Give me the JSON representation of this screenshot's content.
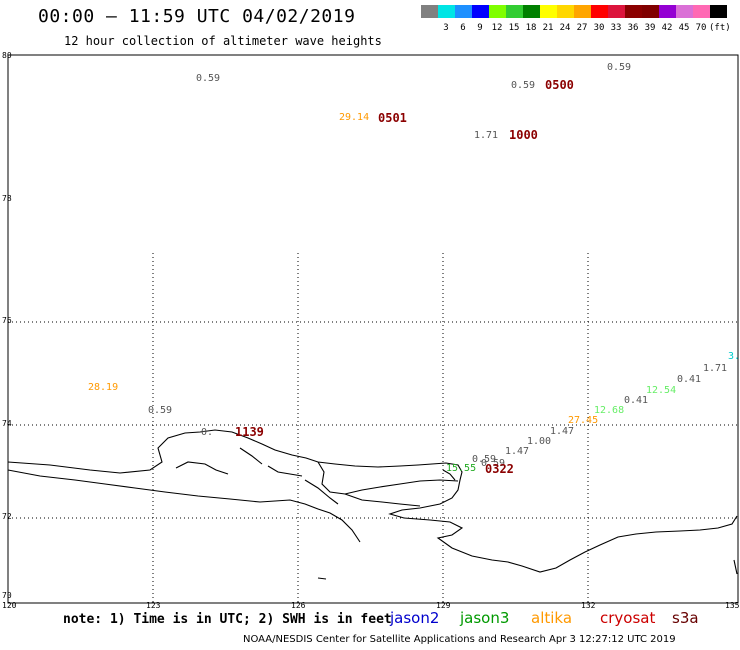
{
  "header": {
    "title": "00:00 – 11:59 UTC 04/02/2019",
    "subtitle": "12 hour collection of altimeter wave heights"
  },
  "legend": {
    "unit": "(ft)",
    "swatches": [
      {
        "label": "",
        "color": "#808080"
      },
      {
        "label": "3",
        "color": "#00e5e5"
      },
      {
        "label": "6",
        "color": "#1e90ff"
      },
      {
        "label": "9",
        "color": "#0000ff"
      },
      {
        "label": "12",
        "color": "#7fff00"
      },
      {
        "label": "15",
        "color": "#32cd32"
      },
      {
        "label": "18",
        "color": "#008000"
      },
      {
        "label": "21",
        "color": "#ffff00"
      },
      {
        "label": "24",
        "color": "#ffd700"
      },
      {
        "label": "27",
        "color": "#ffa500"
      },
      {
        "label": "30",
        "color": "#ff0000"
      },
      {
        "label": "33",
        "color": "#dc143c"
      },
      {
        "label": "36",
        "color": "#8b0000"
      },
      {
        "label": "39",
        "color": "#800000"
      },
      {
        "label": "42",
        "color": "#9400d3"
      },
      {
        "label": "45",
        "color": "#da70d6"
      },
      {
        "label": "70",
        "color": "#ff69b4"
      },
      {
        "label": "",
        "color": "#000000"
      }
    ]
  },
  "axes": {
    "lat_labels": [
      "80",
      "78",
      "76",
      "74",
      "72",
      "70"
    ],
    "lon_labels": [
      "120",
      "123",
      "126",
      "129",
      "132",
      "135"
    ]
  },
  "swh_labels": [
    {
      "text": "0.59",
      "color": "#555555"
    },
    {
      "text": "0.59",
      "color": "#555555"
    },
    {
      "text": "0.59",
      "color": "#555555"
    },
    {
      "text": "29.14",
      "color": "#ff9900"
    },
    {
      "text": "1.71",
      "color": "#555555"
    },
    {
      "text": "28.19",
      "color": "#ff9900"
    },
    {
      "text": "0.59",
      "color": "#555555"
    },
    {
      "text": "0.",
      "color": "#555555"
    },
    {
      "text": "0.59",
      "color": "#555555"
    },
    {
      "text": "0.59",
      "color": "#555555"
    },
    {
      "text": "1.47",
      "color": "#555555"
    },
    {
      "text": "1.00",
      "color": "#555555"
    },
    {
      "text": "1.47",
      "color": "#555555"
    },
    {
      "text": "27.45",
      "color": "#ff9900"
    },
    {
      "text": "12.68",
      "color": "#66ee66"
    },
    {
      "text": "0.41",
      "color": "#555555"
    },
    {
      "text": "12.54",
      "color": "#66ee66"
    },
    {
      "text": "0.41",
      "color": "#555555"
    },
    {
      "text": "1.71",
      "color": "#555555"
    },
    {
      "text": "3.",
      "color": "#00cccc"
    },
    {
      "text": "15.55",
      "color": "#22aa22"
    }
  ],
  "time_labels": [
    "0500",
    "0501",
    "1000",
    "1139",
    "0322"
  ],
  "footer": {
    "note": "note: 1) Time is in UTC; 2) SWH is in feet",
    "satellites": [
      {
        "name": "jason2",
        "color": "#0000cc"
      },
      {
        "name": "jason3",
        "color": "#009900"
      },
      {
        "name": "altika",
        "color": "#ff9900"
      },
      {
        "name": "cryosat",
        "color": "#cc0000"
      },
      {
        "name": "s3a",
        "color": "#660000"
      }
    ],
    "credit": "NOAA/NESDIS Center for Satellite Applications and Research   Apr  3 12:27:12 UTC 2019"
  }
}
